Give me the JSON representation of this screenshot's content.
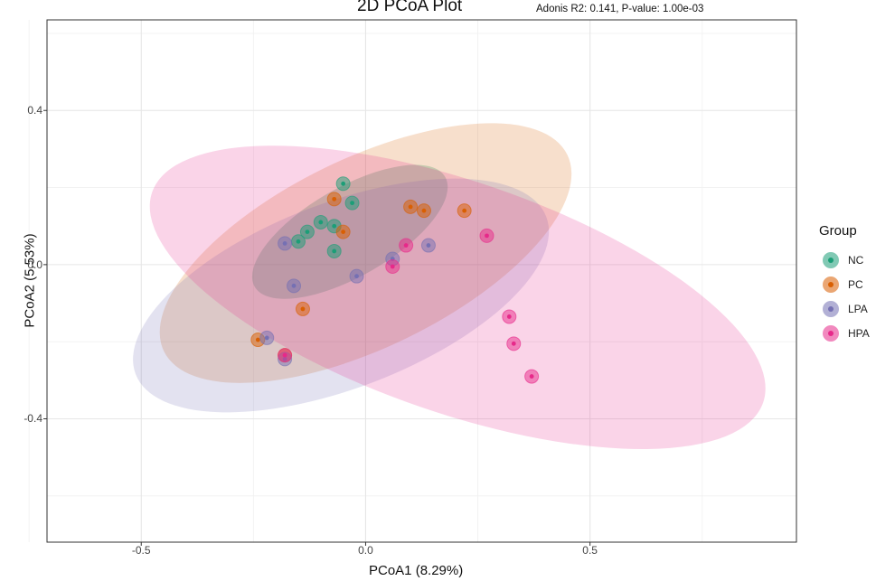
{
  "chart_data": {
    "type": "scatter",
    "title": "2D PCoA Plot",
    "subtitle": "Adonis R2: 0.141, P-value: 1.00e-03",
    "xlabel": "PCoA1 (8.29%)",
    "ylabel": "PCoA2 (5.53%)",
    "xlim": [
      -0.71,
      0.96
    ],
    "ylim": [
      -0.72,
      0.635
    ],
    "x_ticks": [
      -0.5,
      0.0,
      0.5
    ],
    "x_tick_labels": [
      "-0.5",
      "0.0",
      "0.5"
    ],
    "y_ticks": [
      -0.4,
      0.0,
      0.4
    ],
    "y_tick_labels": [
      "-0.4",
      "0.0",
      "0.4"
    ],
    "grid": true,
    "legend_position": "right",
    "legend_title": "Group",
    "series": [
      {
        "name": "NC",
        "color": "#1b9e77",
        "points": [
          [
            -0.05,
            0.21
          ],
          [
            -0.03,
            0.16
          ],
          [
            -0.07,
            0.1
          ],
          [
            -0.1,
            0.11
          ],
          [
            -0.13,
            0.085
          ],
          [
            -0.15,
            0.06
          ],
          [
            -0.07,
            0.035
          ]
        ],
        "ellipse": {
          "cx": -0.035,
          "cy": 0.085,
          "rx": 0.245,
          "ry": 0.115,
          "angle_deg": 30
        }
      },
      {
        "name": "PC",
        "color": "#d95f02",
        "points": [
          [
            -0.07,
            0.17
          ],
          [
            -0.05,
            0.085
          ],
          [
            0.1,
            0.15
          ],
          [
            0.13,
            0.14
          ],
          [
            0.22,
            0.14
          ],
          [
            -0.14,
            -0.115
          ],
          [
            -0.24,
            -0.195
          ],
          [
            -0.18,
            -0.235
          ]
        ],
        "ellipse": {
          "cx": 0.0,
          "cy": 0.03,
          "rx": 0.5,
          "ry": 0.245,
          "angle_deg": 26
        }
      },
      {
        "name": "LPA",
        "color": "#7570b3",
        "points": [
          [
            -0.18,
            0.055
          ],
          [
            -0.16,
            -0.055
          ],
          [
            -0.02,
            -0.03
          ],
          [
            0.06,
            0.015
          ],
          [
            0.14,
            0.05
          ],
          [
            -0.22,
            -0.19
          ],
          [
            -0.18,
            -0.245
          ]
        ],
        "ellipse": {
          "cx": -0.055,
          "cy": -0.08,
          "rx": 0.49,
          "ry": 0.24,
          "angle_deg": 21
        }
      },
      {
        "name": "HPA",
        "color": "#e7298a",
        "points": [
          [
            0.06,
            -0.005
          ],
          [
            0.09,
            0.05
          ],
          [
            0.27,
            0.075
          ],
          [
            0.32,
            -0.135
          ],
          [
            0.33,
            -0.205
          ],
          [
            0.37,
            -0.29
          ],
          [
            -0.18,
            -0.235
          ]
        ],
        "ellipse": {
          "cx": 0.205,
          "cy": -0.085,
          "rx": 0.72,
          "ry": 0.3,
          "angle_deg": -19
        }
      }
    ]
  }
}
